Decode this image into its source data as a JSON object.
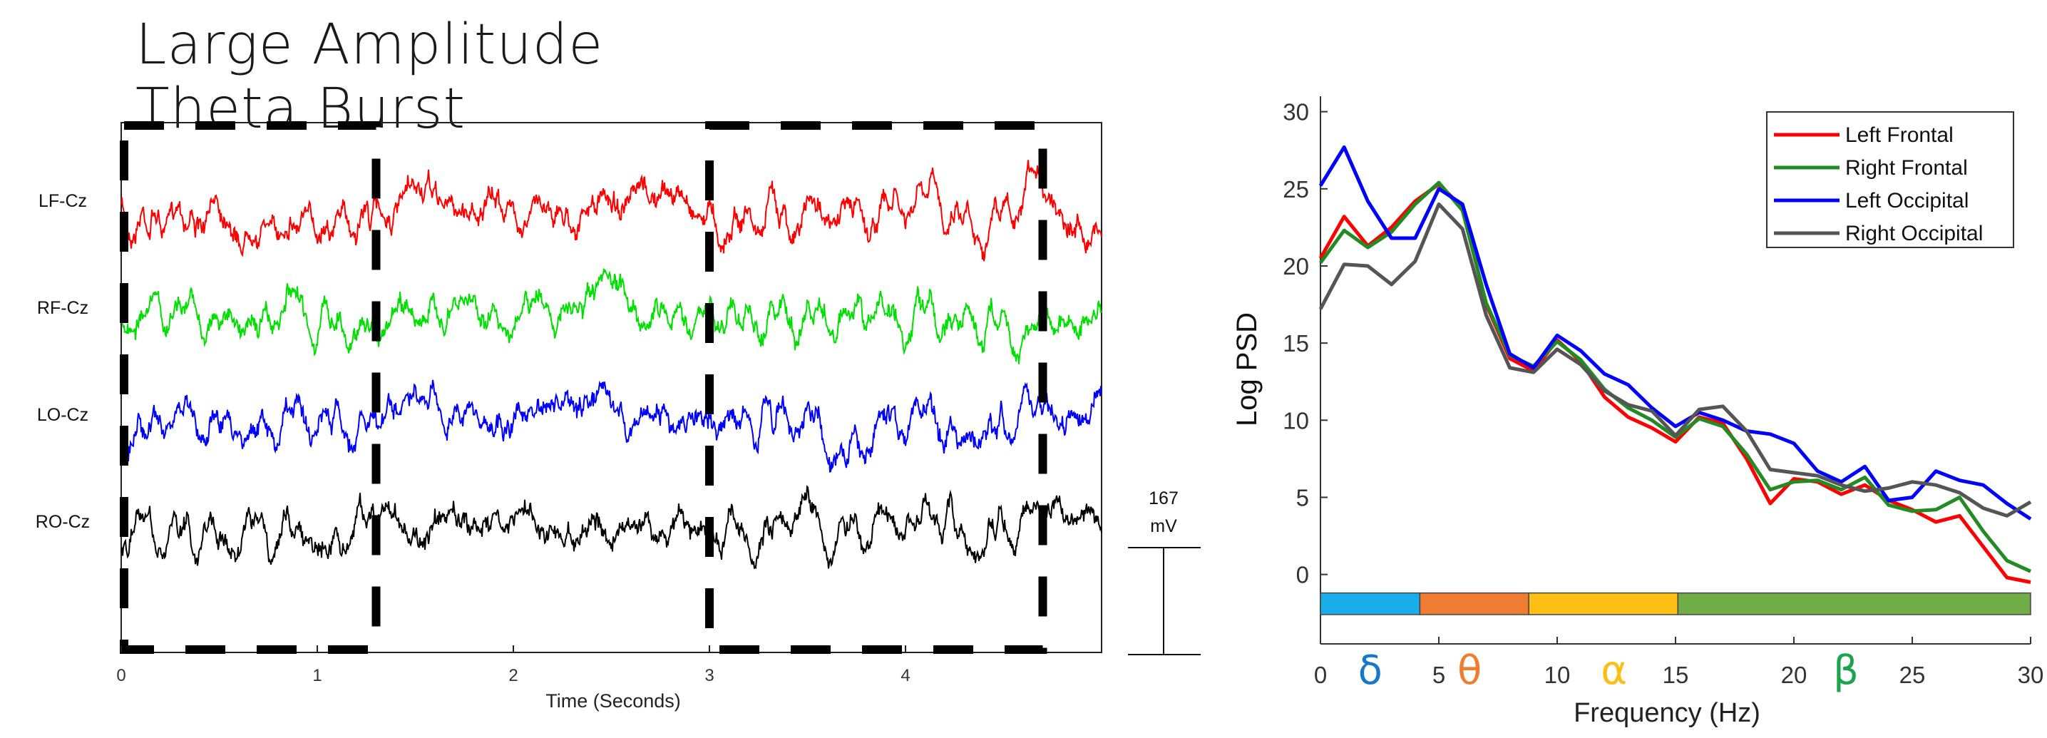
{
  "title": "Large Amplitude Theta Burst",
  "eeg_chart": {
    "type": "line",
    "channels": [
      {
        "name": "LF-Cz",
        "color": "#ff0000"
      },
      {
        "name": "RF-Cz",
        "color": "#00e000"
      },
      {
        "name": "LO-Cz",
        "color": "#0000ff"
      },
      {
        "name": "RO-Cz",
        "color": "#000000"
      }
    ],
    "xlabel": "Time (Seconds)",
    "xlim": [
      0,
      5
    ],
    "xticks": [
      "0",
      "1",
      "2",
      "3",
      "4"
    ],
    "burst_windows": [
      [
        0,
        1.3
      ],
      [
        3.0,
        4.7
      ]
    ],
    "scale_bar_value": "167",
    "scale_bar_unit": "mV"
  },
  "chart_data": {
    "type": "line",
    "title": "",
    "xlabel": "Frequency (Hz)",
    "ylabel": "Log PSD",
    "xlim": [
      0,
      30
    ],
    "ylim": [
      -4.5,
      31
    ],
    "xticks": [
      "0",
      "5",
      "10",
      "15",
      "20",
      "25",
      "30"
    ],
    "yticks": [
      "0",
      "5",
      "10",
      "15",
      "20",
      "25",
      "30"
    ],
    "legend_position": "top-right",
    "x": [
      0,
      1,
      2,
      3,
      4,
      5,
      6,
      7,
      8,
      9,
      10,
      11,
      12,
      13,
      14,
      15,
      16,
      17,
      18,
      19,
      20,
      21,
      22,
      23,
      24,
      25,
      26,
      27,
      28,
      29,
      30
    ],
    "series": [
      {
        "name": "Left Frontal",
        "color": "#ff0000",
        "values": [
          20.5,
          23.2,
          21.3,
          22.5,
          24.2,
          25.3,
          23.8,
          17.5,
          14,
          13.2,
          15.2,
          13.8,
          11.5,
          10.2,
          9.5,
          8.6,
          10.2,
          9.8,
          7.5,
          4.6,
          6.2,
          6.0,
          5.2,
          5.8,
          4.8,
          4.2,
          3.4,
          3.8,
          1.8,
          -0.2,
          -0.5
        ]
      },
      {
        "name": "Right Frontal",
        "color": "#228b22",
        "values": [
          20.2,
          22.3,
          21.2,
          22.2,
          24.0,
          25.4,
          23.6,
          17.6,
          14.2,
          13.5,
          15.1,
          13.9,
          12.0,
          10.8,
          10.0,
          8.9,
          10.1,
          9.6,
          7.8,
          5.5,
          6.0,
          6.1,
          5.5,
          6.3,
          4.5,
          4.1,
          4.2,
          5.0,
          2.8,
          0.9,
          0.2
        ]
      },
      {
        "name": "Left Occipital",
        "color": "#0000ff",
        "values": [
          25.2,
          27.7,
          24.2,
          21.8,
          21.8,
          25.0,
          24.0,
          18.8,
          14.3,
          13.4,
          15.5,
          14.5,
          13.0,
          12.3,
          10.8,
          9.6,
          10.5,
          10.0,
          9.3,
          9.1,
          8.5,
          6.7,
          6.0,
          7.0,
          4.8,
          5.0,
          6.7,
          6.1,
          5.8,
          4.6,
          3.6
        ]
      },
      {
        "name": "Right Occipital",
        "color": "#555555",
        "values": [
          17.2,
          20.1,
          20.0,
          18.8,
          20.3,
          24.0,
          22.4,
          16.8,
          13.4,
          13.1,
          14.6,
          13.6,
          11.9,
          11.0,
          10.6,
          9.0,
          10.7,
          10.9,
          9.3,
          6.8,
          6.6,
          6.4,
          5.8,
          5.4,
          5.6,
          6.0,
          5.8,
          5.3,
          4.3,
          3.8,
          4.7
        ]
      }
    ],
    "bands": [
      {
        "symbol": "δ",
        "range": [
          0,
          4.2
        ],
        "bar_color": "#19aeea",
        "label_color": "#1878c8"
      },
      {
        "symbol": "θ",
        "range": [
          4.2,
          8.8
        ],
        "bar_color": "#ee7d31",
        "label_color": "#ee7d31"
      },
      {
        "symbol": "α",
        "range": [
          8.8,
          15.1
        ],
        "bar_color": "#fdbf13",
        "label_color": "#fdbf13"
      },
      {
        "symbol": "β",
        "range": [
          15.1,
          30
        ],
        "bar_color": "#70ad47",
        "label_color": "#1aa54c"
      }
    ]
  }
}
